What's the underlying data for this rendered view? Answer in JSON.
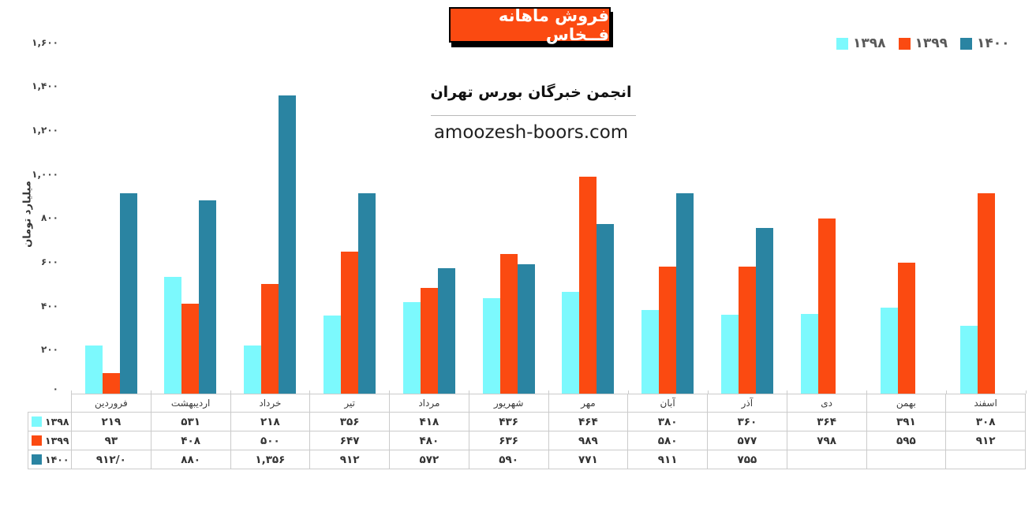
{
  "header": {
    "title": "فروش ماهانه فــخاس",
    "subtitle": "انجمن خبرگان بورس تهران",
    "website": "amoozesh-boors.com"
  },
  "colors": {
    "title_bg": "#FB4A11",
    "title_text": "#FFFFFF",
    "title_border": "#000000",
    "legend_text": "#595959",
    "axis_text": "#3F3F3F",
    "table_border": "#CBCBCB",
    "table_text": "#333333",
    "background": "#FFFFFF"
  },
  "chart_data": {
    "type": "bar",
    "title": "فروش ماهانه فخاس",
    "xlabel": "",
    "ylabel": "میلیارد تومان",
    "ylim": [
      0,
      1600
    ],
    "grid": false,
    "legend_position": "top-right",
    "categories": [
      "فروردین",
      "اردیبهشت",
      "خرداد",
      "تیر",
      "مرداد",
      "شهریور",
      "مهر",
      "آبان",
      "آذر",
      "دی",
      "بهمن",
      "اسفند"
    ],
    "y_axis": {
      "values": [
        0,
        200,
        400,
        600,
        800,
        1000,
        1200,
        1400,
        1600
      ],
      "labels": [
        "۰",
        "۲۰۰",
        "۴۰۰",
        "۶۰۰",
        "۸۰۰",
        "۱,۰۰۰",
        "۱,۲۰۰",
        "۱,۴۰۰",
        "۱,۶۰۰"
      ]
    },
    "series": [
      {
        "key": "1398",
        "name": "۱۳۹۸",
        "color": "#7CF9FD",
        "values": [
          219,
          531,
          218,
          356,
          418,
          436,
          464,
          380,
          360,
          364,
          391,
          308
        ],
        "display": [
          "۲۱۹",
          "۵۳۱",
          "۲۱۸",
          "۳۵۶",
          "۴۱۸",
          "۴۳۶",
          "۴۶۴",
          "۳۸۰",
          "۳۶۰",
          "۳۶۴",
          "۳۹۱",
          "۳۰۸"
        ]
      },
      {
        "key": "1399",
        "name": "۱۳۹۹",
        "color": "#FB4A11",
        "values": [
          93,
          408,
          500,
          647,
          480,
          636,
          989,
          580,
          577,
          798,
          595,
          912
        ],
        "display": [
          "۹۳",
          "۴۰۸",
          "۵۰۰",
          "۶۴۷",
          "۴۸۰",
          "۶۳۶",
          "۹۸۹",
          "۵۸۰",
          "۵۷۷",
          "۷۹۸",
          "۵۹۵",
          "۹۱۲"
        ]
      },
      {
        "key": "1400",
        "name": "۱۴۰۰",
        "color": "#2A84A2",
        "values": [
          912,
          880,
          1356,
          912,
          572,
          590,
          771,
          911,
          755,
          null,
          null,
          null
        ],
        "display": [
          "۹۱۲/۰",
          "۸۸۰",
          "۱,۳۵۶",
          "۹۱۲",
          "۵۷۲",
          "۵۹۰",
          "۷۷۱",
          "۹۱۱",
          "۷۵۵",
          "",
          "",
          ""
        ]
      }
    ]
  }
}
